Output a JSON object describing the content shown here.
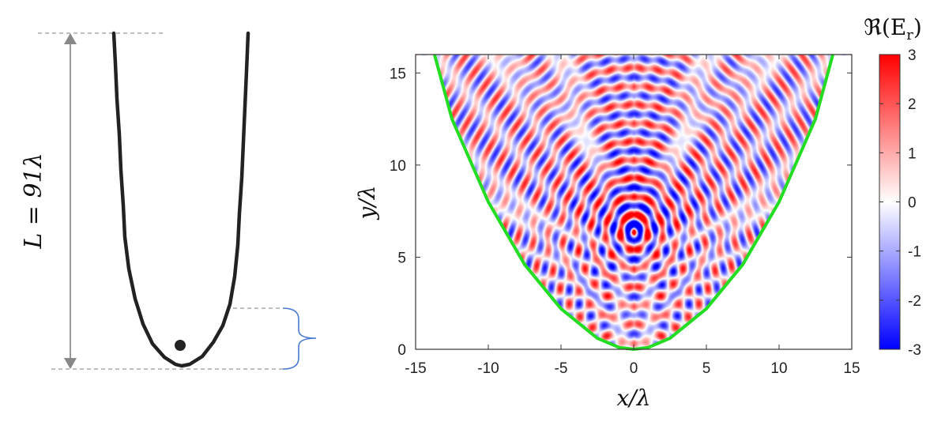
{
  "left_diagram": {
    "length_label": "L = 91λ"
  },
  "chart_data": {
    "type": "heatmap",
    "title": "",
    "xlabel": "x/λ",
    "ylabel": "y/λ",
    "xlim": [
      -15,
      15
    ],
    "ylim": [
      0,
      16
    ],
    "xticks": [
      -15,
      -10,
      -5,
      0,
      5,
      10,
      15
    ],
    "yticks": [
      0,
      5,
      10,
      15
    ],
    "field_center": [
      0,
      6.4
    ],
    "boundary": {
      "color": "#22dd22",
      "x": [
        -13.7,
        -12.5,
        -10,
        -7.5,
        -5,
        -2.5,
        -1,
        0,
        1,
        2.5,
        5,
        7.5,
        10,
        12.5,
        13.7
      ],
      "y": [
        16,
        12.5,
        8,
        4.6,
        2.2,
        0.6,
        0.1,
        0,
        0.1,
        0.6,
        2.2,
        4.6,
        8,
        12.5,
        16
      ]
    },
    "colorbar": {
      "label": "ℜ(E_r)",
      "label_main": "ℜ(E",
      "label_sub": "r",
      "label_close": ")",
      "min": -3,
      "max": 3,
      "ticks": [
        "3",
        "2",
        "1",
        "0",
        "-1",
        "-2",
        "-3"
      ],
      "colors": [
        "#0000ff",
        "#ffffff",
        "#ff0000"
      ]
    }
  }
}
